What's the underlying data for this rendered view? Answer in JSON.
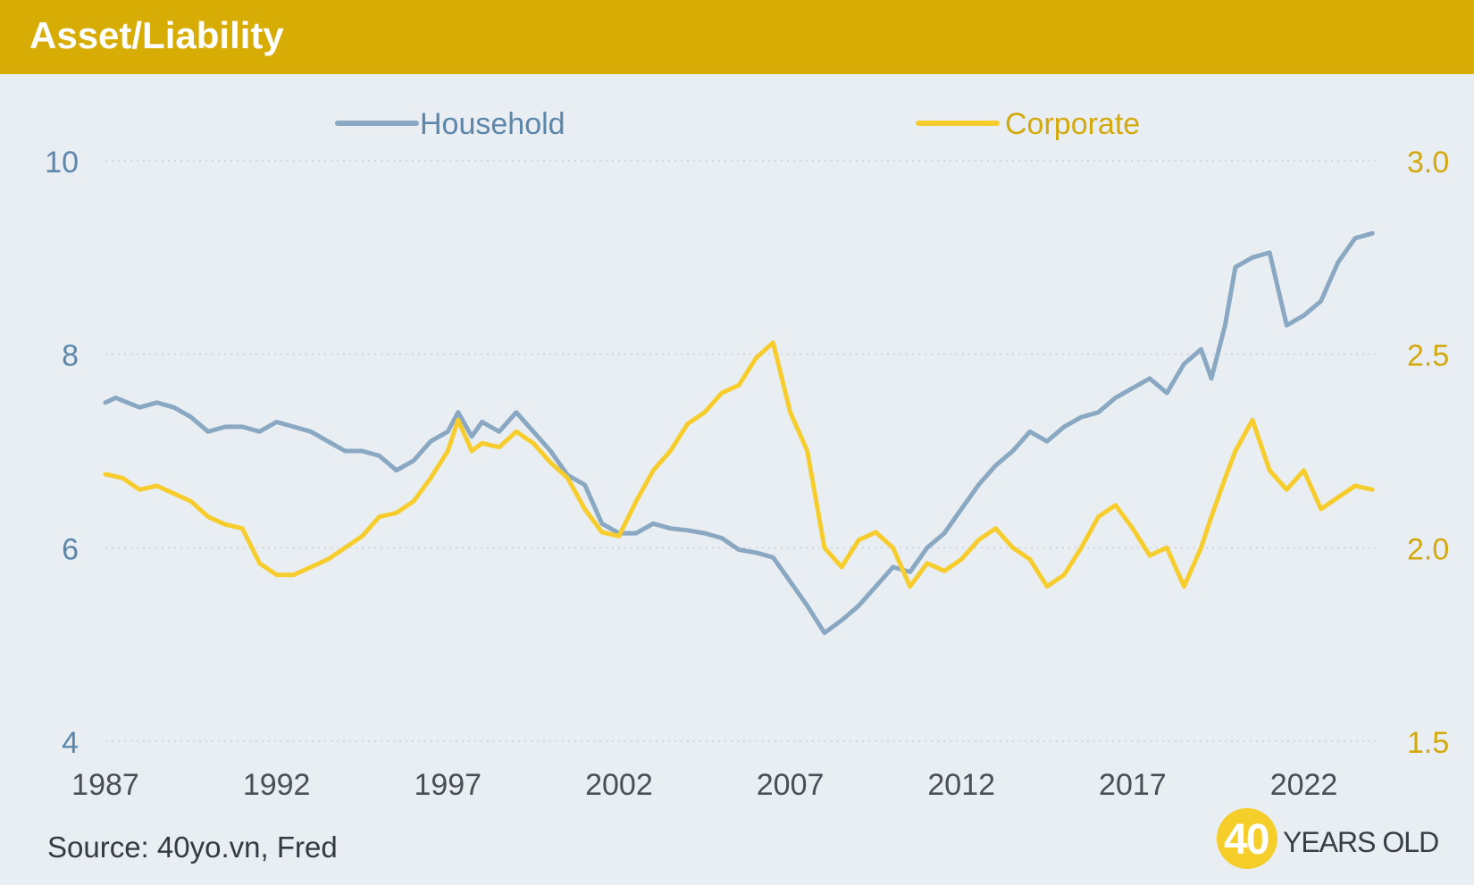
{
  "header": {
    "title": "Asset/Liability"
  },
  "source": "Source: 40yo.vn, Fred",
  "logo": {
    "number": "40",
    "text": "YEARS OLD"
  },
  "colors": {
    "banner": "#d6ac05",
    "household": "#8aa8c2",
    "corporate": "#f7cd2e",
    "left_axis": "#5d86ab",
    "right_axis": "#d3a90e",
    "background": "#e9eef3"
  },
  "chart_data": {
    "type": "line",
    "title": "Asset/Liability",
    "legend_position": "top",
    "grid": true,
    "x_ticks": [
      "1987",
      "1992",
      "1997",
      "2002",
      "2007",
      "2012",
      "2017",
      "2022"
    ],
    "x_range": [
      1987,
      2024.1
    ],
    "y_left": {
      "range": [
        4,
        10
      ],
      "ticks": [
        "4",
        "6",
        "8",
        "10"
      ]
    },
    "y_right": {
      "range": [
        1.5,
        3.0
      ],
      "ticks": [
        "1.5",
        "2.0",
        "2.5",
        "3.0"
      ]
    },
    "series": [
      {
        "name": "Household",
        "axis": "left",
        "x": [
          1987.0,
          1987.3,
          1988.0,
          1988.5,
          1989.0,
          1989.5,
          1990.0,
          1990.5,
          1991.0,
          1991.5,
          1992.0,
          1992.5,
          1993.0,
          1993.5,
          1994.0,
          1994.5,
          1995.0,
          1995.5,
          1996.0,
          1996.5,
          1997.0,
          1997.3,
          1997.7,
          1998.0,
          1998.5,
          1999.0,
          1999.5,
          2000.0,
          2000.5,
          2001.0,
          2001.5,
          2002.0,
          2002.5,
          2003.0,
          2003.5,
          2004.0,
          2004.5,
          2005.0,
          2005.5,
          2006.0,
          2006.5,
          2007.0,
          2007.5,
          2008.0,
          2008.5,
          2009.0,
          2009.5,
          2010.0,
          2010.5,
          2011.0,
          2011.5,
          2012.0,
          2012.5,
          2013.0,
          2013.5,
          2014.0,
          2014.5,
          2015.0,
          2015.5,
          2016.0,
          2016.5,
          2017.0,
          2017.5,
          2018.0,
          2018.5,
          2019.0,
          2019.3,
          2019.7,
          2020.0,
          2020.5,
          2021.0,
          2021.5,
          2022.0,
          2022.5,
          2023.0,
          2023.5,
          2024.0
        ],
        "values": [
          7.5,
          7.55,
          7.45,
          7.5,
          7.45,
          7.35,
          7.2,
          7.25,
          7.25,
          7.2,
          7.3,
          7.25,
          7.2,
          7.1,
          7.0,
          7.0,
          6.95,
          6.8,
          6.9,
          7.1,
          7.2,
          7.4,
          7.15,
          7.3,
          7.2,
          7.4,
          7.2,
          7.0,
          6.75,
          6.65,
          6.25,
          6.15,
          6.15,
          6.25,
          6.2,
          6.18,
          6.15,
          6.1,
          5.98,
          5.95,
          5.9,
          5.65,
          5.4,
          5.12,
          5.25,
          5.4,
          5.6,
          5.8,
          5.75,
          6.0,
          6.15,
          6.4,
          6.65,
          6.85,
          7.0,
          7.2,
          7.1,
          7.25,
          7.35,
          7.4,
          7.55,
          7.65,
          7.75,
          7.6,
          7.9,
          8.05,
          7.75,
          8.3,
          8.9,
          9.0,
          9.05,
          8.3,
          8.4,
          8.55,
          8.95,
          9.2,
          9.25
        ]
      },
      {
        "name": "Corporate",
        "axis": "right",
        "x": [
          1987.0,
          1987.5,
          1988.0,
          1988.5,
          1989.0,
          1989.5,
          1990.0,
          1990.5,
          1991.0,
          1991.5,
          1992.0,
          1992.5,
          1993.0,
          1993.5,
          1994.0,
          1994.5,
          1995.0,
          1995.5,
          1996.0,
          1996.5,
          1997.0,
          1997.3,
          1997.7,
          1998.0,
          1998.5,
          1999.0,
          1999.5,
          2000.0,
          2000.5,
          2001.0,
          2001.5,
          2002.0,
          2002.5,
          2003.0,
          2003.5,
          2004.0,
          2004.5,
          2005.0,
          2005.5,
          2006.0,
          2006.5,
          2007.0,
          2007.5,
          2008.0,
          2008.5,
          2009.0,
          2009.5,
          2010.0,
          2010.5,
          2011.0,
          2011.5,
          2012.0,
          2012.5,
          2013.0,
          2013.5,
          2014.0,
          2014.5,
          2015.0,
          2015.5,
          2016.0,
          2016.5,
          2017.0,
          2017.5,
          2018.0,
          2018.5,
          2019.0,
          2019.3,
          2019.7,
          2020.0,
          2020.5,
          2021.0,
          2021.5,
          2022.0,
          2022.5,
          2023.0,
          2023.5,
          2024.0
        ],
        "values": [
          2.19,
          2.18,
          2.15,
          2.16,
          2.14,
          2.12,
          2.08,
          2.06,
          2.05,
          1.96,
          1.93,
          1.93,
          1.95,
          1.97,
          2.0,
          2.03,
          2.08,
          2.09,
          2.12,
          2.18,
          2.25,
          2.33,
          2.25,
          2.27,
          2.26,
          2.3,
          2.27,
          2.22,
          2.18,
          2.1,
          2.04,
          2.03,
          2.12,
          2.2,
          2.25,
          2.32,
          2.35,
          2.4,
          2.42,
          2.49,
          2.53,
          2.35,
          2.25,
          2.0,
          1.95,
          2.02,
          2.04,
          2.0,
          1.9,
          1.96,
          1.94,
          1.97,
          2.02,
          2.05,
          2.0,
          1.97,
          1.9,
          1.93,
          2.0,
          2.08,
          2.11,
          2.05,
          1.98,
          2.0,
          1.9,
          2.0,
          2.08,
          2.18,
          2.25,
          2.33,
          2.2,
          2.15,
          2.2,
          2.1,
          2.13,
          2.16,
          2.15
        ]
      }
    ]
  }
}
